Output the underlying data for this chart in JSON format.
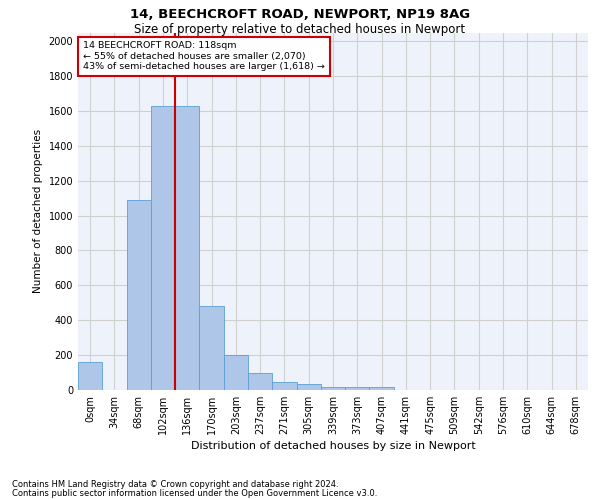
{
  "title1": "14, BEECHCROFT ROAD, NEWPORT, NP19 8AG",
  "title2": "Size of property relative to detached houses in Newport",
  "xlabel": "Distribution of detached houses by size in Newport",
  "ylabel": "Number of detached properties",
  "footnote1": "Contains HM Land Registry data © Crown copyright and database right 2024.",
  "footnote2": "Contains public sector information licensed under the Open Government Licence v3.0.",
  "annotation_line1": "14 BEECHCROFT ROAD: 118sqm",
  "annotation_line2": "← 55% of detached houses are smaller (2,070)",
  "annotation_line3": "43% of semi-detached houses are larger (1,618) →",
  "bar_color": "#aec6e8",
  "bar_edge_color": "#5a9fd4",
  "grid_color": "#d0d0d0",
  "bg_color": "#eef2fb",
  "vline_color": "#cc0000",
  "annotation_box_color": "#cc0000",
  "bin_labels": [
    "0sqm",
    "34sqm",
    "68sqm",
    "102sqm",
    "136sqm",
    "170sqm",
    "203sqm",
    "237sqm",
    "271sqm",
    "305sqm",
    "339sqm",
    "373sqm",
    "407sqm",
    "441sqm",
    "475sqm",
    "509sqm",
    "542sqm",
    "576sqm",
    "610sqm",
    "644sqm",
    "678sqm"
  ],
  "bar_heights": [
    160,
    0,
    1090,
    1630,
    1630,
    480,
    200,
    100,
    45,
    35,
    20,
    20,
    15,
    0,
    0,
    0,
    0,
    0,
    0,
    0,
    0
  ],
  "ylim": [
    0,
    2050
  ],
  "vline_x": 3.5,
  "num_bins": 21
}
